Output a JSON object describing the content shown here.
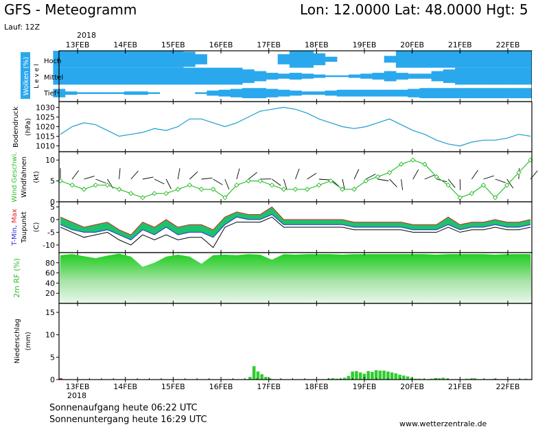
{
  "header": {
    "title": "GFS - Meteogramm",
    "location": "Lon: 12.0000  Lat: 48.0000  Hgt: 5",
    "run": "Lauf: 12Z",
    "year": "2018"
  },
  "x_axis": {
    "dates": [
      "13FEB",
      "14FEB",
      "15FEB",
      "16FEB",
      "17FEB",
      "18FEB",
      "19FEB",
      "20FEB",
      "21FEB",
      "22FEB"
    ]
  },
  "colors": {
    "cloud": "#2aa8ee",
    "pressure": "#1a9ccf",
    "wind": "#2fbf2f",
    "green": "#2ecc2e",
    "teal": "#12b8a0",
    "tmin": "#2a2ad6",
    "tmax": "#e02020"
  },
  "footer": {
    "sunrise": "Sonnenaufgang heute 06:22 UTC",
    "sunset": "Sonnenuntergang heute 16:29 UTC",
    "site": "www.wetterzentrale.de"
  },
  "chart_data": [
    {
      "type": "heatmap",
      "ylabel": "Wolken (%)",
      "ylabel2": "L e v e l",
      "levels": [
        "Hoch",
        "Mittel",
        "Tief"
      ],
      "x": [
        0,
        1,
        2,
        3,
        4,
        5,
        6,
        7,
        8,
        9,
        10,
        11,
        12,
        13,
        14,
        15,
        16,
        17,
        18,
        19,
        20,
        21,
        22,
        23,
        24,
        25,
        26,
        27,
        28,
        29,
        30,
        31,
        32,
        33,
        34,
        35,
        36,
        37,
        38,
        39,
        40
      ],
      "cover_percent": {
        "Hoch": [
          100,
          100,
          100,
          100,
          100,
          100,
          100,
          100,
          100,
          100,
          100,
          90,
          60,
          0,
          0,
          0,
          0,
          0,
          0,
          60,
          100,
          100,
          70,
          30,
          0,
          0,
          0,
          0,
          40,
          100,
          100,
          100,
          100,
          100,
          100,
          100,
          100,
          100,
          100,
          100,
          100
        ],
        "Mittel": [
          100,
          100,
          100,
          100,
          100,
          100,
          100,
          100,
          100,
          100,
          100,
          100,
          100,
          100,
          100,
          100,
          80,
          60,
          40,
          30,
          40,
          30,
          20,
          10,
          10,
          20,
          30,
          40,
          60,
          40,
          30,
          30,
          60,
          80,
          100,
          100,
          100,
          100,
          100,
          100,
          100
        ],
        "Tief": [
          50,
          20,
          10,
          10,
          10,
          10,
          20,
          20,
          10,
          0,
          0,
          0,
          10,
          30,
          40,
          50,
          60,
          60,
          50,
          40,
          30,
          20,
          20,
          30,
          40,
          40,
          40,
          40,
          40,
          40,
          50,
          60,
          60,
          60,
          60,
          60,
          60,
          60,
          60,
          60,
          60
        ]
      }
    },
    {
      "type": "line",
      "ylabel": "Bodendruck",
      "unit": "(hPa)",
      "yticks": [
        1010,
        1015,
        1020,
        1025,
        1030
      ],
      "ylim": [
        1007,
        1033
      ],
      "x": [
        0,
        1,
        2,
        3,
        4,
        5,
        6,
        7,
        8,
        9,
        10,
        11,
        12,
        13,
        14,
        15,
        16,
        17,
        18,
        19,
        20,
        21,
        22,
        23,
        24,
        25,
        26,
        27,
        28,
        29,
        30,
        31,
        32,
        33,
        34,
        35,
        36,
        37,
        38,
        39,
        40
      ],
      "values": [
        1016,
        1020,
        1022,
        1021,
        1018,
        1015,
        1016,
        1017,
        1019,
        1018,
        1020,
        1024,
        1024,
        1022,
        1020,
        1022,
        1025,
        1028,
        1029,
        1030,
        1029,
        1027,
        1024,
        1022,
        1020,
        1019,
        1020,
        1022,
        1024,
        1021,
        1018,
        1016,
        1013,
        1011,
        1010,
        1012,
        1013,
        1013,
        1014,
        1016,
        1015
      ]
    },
    {
      "type": "line",
      "ylabel": "Wind Geschwi.",
      "ylabel2": "Windfahnen",
      "unit": "(kt)",
      "yticks": [
        0,
        5,
        10
      ],
      "ylim": [
        0,
        12
      ],
      "x": [
        0,
        1,
        2,
        3,
        4,
        5,
        6,
        7,
        8,
        9,
        10,
        11,
        12,
        13,
        14,
        15,
        16,
        17,
        18,
        19,
        20,
        21,
        22,
        23,
        24,
        25,
        26,
        27,
        28,
        29,
        30,
        31,
        32,
        33,
        34,
        35,
        36,
        37,
        38,
        39,
        40
      ],
      "values": [
        5,
        4,
        3,
        4,
        4,
        3,
        2,
        1,
        2,
        2,
        3,
        4,
        3,
        3,
        1,
        4,
        5,
        5,
        4,
        3,
        3,
        3,
        4,
        5,
        3,
        3,
        5,
        6,
        7,
        9,
        10,
        9,
        6,
        4,
        1,
        2,
        4,
        1,
        4,
        7,
        10
      ]
    },
    {
      "type": "line",
      "ylabel": "T-Min, Max",
      "ylabel2": "Taupunkt",
      "unit": "(C)",
      "yticks": [
        -10,
        -5,
        0,
        5
      ],
      "ylim": [
        -13,
        7
      ],
      "x": [
        0,
        1,
        2,
        3,
        4,
        5,
        6,
        7,
        8,
        9,
        10,
        11,
        12,
        13,
        14,
        15,
        16,
        17,
        18,
        19,
        20,
        21,
        22,
        23,
        24,
        25,
        26,
        27,
        28,
        29,
        30,
        31,
        32,
        33,
        34,
        35,
        36,
        37,
        38,
        39,
        40
      ],
      "series": [
        {
          "name": "T-Max",
          "values": [
            1,
            -1,
            -3,
            -2,
            -1,
            -4,
            -6,
            -1,
            -3,
            0,
            -3,
            -2,
            -2,
            -4,
            1,
            3,
            2,
            2,
            5,
            0,
            0,
            0,
            0,
            0,
            0,
            -1,
            -1,
            -1,
            -1,
            -1,
            -2,
            -2,
            -2,
            1,
            -2,
            -1,
            -1,
            0,
            -1,
            -1,
            0
          ]
        },
        {
          "name": "T-Min",
          "values": [
            -2,
            -4,
            -5,
            -5,
            -4,
            -6,
            -8,
            -4,
            -6,
            -3,
            -6,
            -5,
            -5,
            -7,
            -2,
            1,
            0,
            0,
            2,
            -2,
            -2,
            -2,
            -2,
            -2,
            -2,
            -3,
            -3,
            -3,
            -3,
            -3,
            -4,
            -4,
            -4,
            -2,
            -4,
            -3,
            -3,
            -2,
            -3,
            -3,
            -2
          ]
        },
        {
          "name": "Taupunkt",
          "values": [
            -3,
            -5,
            -7,
            -6,
            -5,
            -8,
            -10,
            -6,
            -8,
            -6,
            -8,
            -7,
            -7,
            -11,
            -3,
            -1,
            -1,
            -1,
            1,
            -3,
            -3,
            -3,
            -3,
            -3,
            -3,
            -4,
            -4,
            -4,
            -4,
            -4,
            -5,
            -5,
            -5,
            -3,
            -5,
            -4,
            -4,
            -3,
            -4,
            -4,
            -3
          ]
        }
      ]
    },
    {
      "type": "area",
      "ylabel": "2m RF (%)",
      "yticks": [
        20,
        40,
        60,
        80
      ],
      "ylim": [
        0,
        100
      ],
      "x": [
        0,
        1,
        2,
        3,
        4,
        5,
        6,
        7,
        8,
        9,
        10,
        11,
        12,
        13,
        14,
        15,
        16,
        17,
        18,
        19,
        20,
        21,
        22,
        23,
        24,
        25,
        26,
        27,
        28,
        29,
        30,
        31,
        32,
        33,
        34,
        35,
        36,
        37,
        38,
        39,
        40
      ],
      "values": [
        95,
        97,
        93,
        89,
        94,
        98,
        92,
        72,
        80,
        92,
        96,
        92,
        78,
        95,
        96,
        95,
        97,
        96,
        86,
        97,
        96,
        97,
        97,
        97,
        96,
        97,
        97,
        97,
        97,
        97,
        97,
        97,
        96,
        97,
        97,
        97,
        97,
        96,
        97,
        97,
        97
      ]
    },
    {
      "type": "bar",
      "ylabel": "Niederschlag",
      "unit": "(mm)",
      "yticks": [
        0,
        5,
        10,
        15
      ],
      "ylim": [
        0,
        17
      ],
      "x": [
        0,
        1,
        2,
        3,
        4,
        5,
        6,
        7,
        8,
        9,
        10,
        11,
        12,
        13,
        14,
        15,
        16,
        17,
        18,
        19,
        20,
        21,
        22,
        23,
        24,
        25,
        26,
        27,
        28,
        29,
        30,
        31,
        32,
        33,
        34,
        35,
        36,
        37,
        38,
        39,
        40,
        41,
        42,
        43,
        44,
        45,
        46,
        47,
        48,
        49,
        50,
        51,
        52,
        53,
        54,
        55,
        56,
        57,
        58,
        59,
        60,
        61,
        62,
        63,
        64,
        65,
        66,
        67,
        68,
        69,
        70,
        71,
        72,
        73,
        74,
        75,
        76,
        77,
        78,
        79,
        80,
        81,
        82,
        83,
        84,
        85,
        86,
        87,
        88,
        89,
        90,
        91,
        92,
        93,
        94,
        95,
        96,
        97,
        98,
        99,
        100,
        101,
        102,
        103,
        104,
        105,
        106,
        107,
        108,
        109,
        110,
        111,
        112,
        113,
        114,
        115,
        116,
        117,
        118,
        119
      ],
      "values": [
        0.3,
        0,
        0,
        0,
        0,
        0,
        0,
        0,
        0,
        0,
        0,
        0,
        0,
        0,
        0,
        0,
        0,
        0,
        0,
        0,
        0,
        0,
        0,
        0,
        0,
        0,
        0,
        0,
        0,
        0,
        0,
        0,
        0,
        0,
        0,
        0,
        0,
        0,
        0,
        0,
        0,
        0,
        0,
        0,
        0,
        0,
        0,
        0,
        0.6,
        3.0,
        1.8,
        1.2,
        0.6,
        0.3,
        0,
        0,
        0,
        0,
        0,
        0,
        0,
        0,
        0,
        0,
        0,
        0,
        0,
        0,
        0.2,
        0.3,
        0.2,
        0.2,
        0.4,
        0.8,
        1.8,
        1.9,
        1.6,
        1.3,
        1.9,
        1.7,
        2.1,
        2.0,
        2.0,
        1.8,
        1.6,
        1.4,
        1.1,
        0.9,
        0.7,
        0.4,
        0.2,
        0.2,
        0.1,
        0.1,
        0.2,
        0.3,
        0.3,
        0.4,
        0.2,
        0.1,
        0.1,
        0.1,
        0.1,
        0.2,
        0.2,
        0.3,
        0.1,
        0.1,
        0.1,
        0.1,
        0.2,
        0.1,
        0.1,
        0.1,
        0.1,
        0.1,
        0.1,
        0.1,
        0.2,
        0.1
      ]
    }
  ]
}
